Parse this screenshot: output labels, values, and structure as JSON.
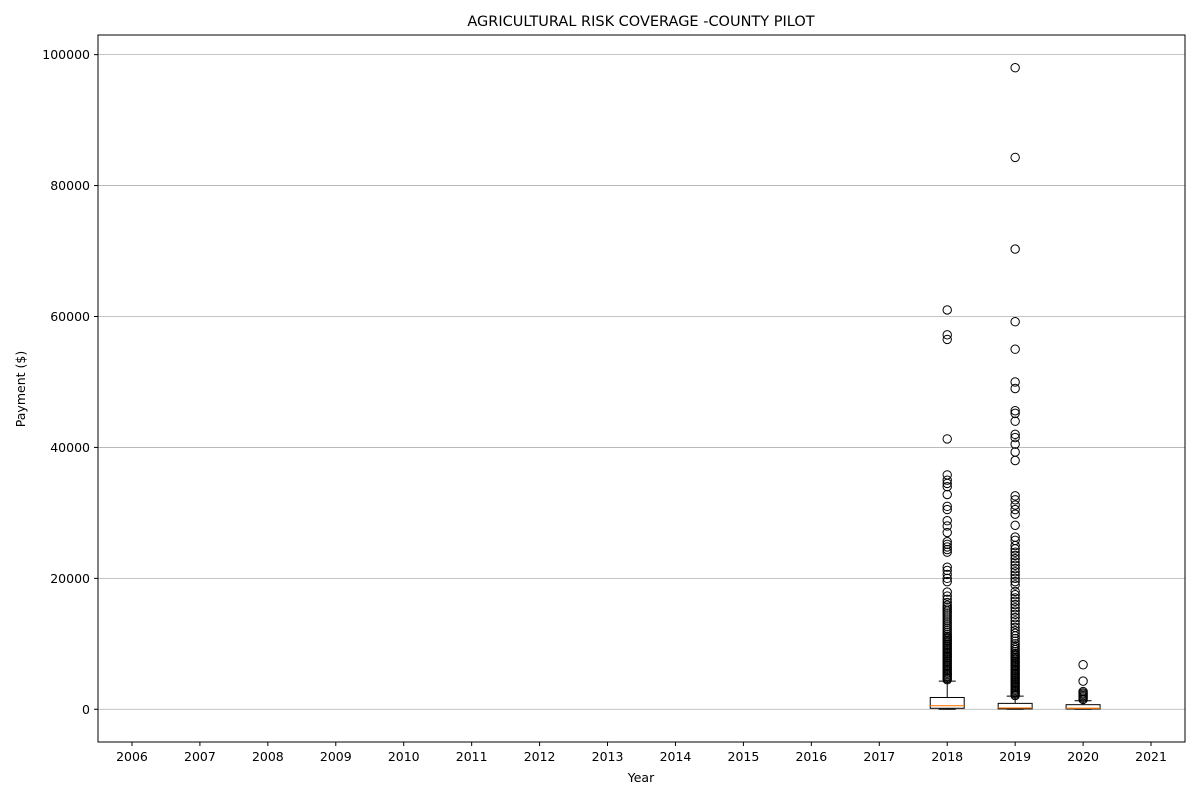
{
  "chart_data": {
    "type": "boxplot",
    "title": "AGRICULTURAL RISK COVERAGE -COUNTY PILOT",
    "xlabel": "Year",
    "ylabel": "Payment ($)",
    "categories": [
      "2006",
      "2007",
      "2008",
      "2009",
      "2010",
      "2011",
      "2012",
      "2013",
      "2014",
      "2015",
      "2016",
      "2017",
      "2018",
      "2019",
      "2020",
      "2021"
    ],
    "ylim": [
      -5000,
      103000
    ],
    "yticks": [
      0,
      20000,
      40000,
      60000,
      80000,
      100000
    ],
    "grid": "y",
    "colors": {
      "box": "#000000",
      "median": "#ff7f0e",
      "grid": "#b0b0b0"
    },
    "boxes": [
      {
        "category": "2018",
        "q1": 150,
        "median": 550,
        "q3": 1800,
        "whisker_low": 0,
        "whisker_high": 4300,
        "outliers": [
          4500,
          4700,
          4900,
          5100,
          5300,
          5500,
          5700,
          5900,
          6100,
          6300,
          6500,
          6700,
          6900,
          7100,
          7300,
          7500,
          7700,
          7900,
          8100,
          8300,
          8500,
          8700,
          8900,
          9100,
          9300,
          9500,
          9700,
          9900,
          10100,
          10300,
          10500,
          10700,
          10900,
          11100,
          11400,
          11700,
          12000,
          12300,
          12600,
          12900,
          13200,
          13500,
          13800,
          14100,
          14400,
          14700,
          15000,
          15300,
          15600,
          15900,
          16300,
          16800,
          17300,
          17900,
          19500,
          20000,
          20600,
          21200,
          21700,
          24000,
          24400,
          24800,
          25200,
          25600,
          27000,
          28000,
          28800,
          30500,
          31000,
          32800,
          34000,
          34500,
          35000,
          35800,
          41300,
          56500,
          57200,
          61000
        ]
      },
      {
        "category": "2019",
        "q1": 50,
        "median": 200,
        "q3": 900,
        "whisker_low": 0,
        "whisker_high": 2000,
        "outliers": [
          2100,
          2300,
          2500,
          2700,
          2900,
          3100,
          3300,
          3500,
          3700,
          3900,
          4100,
          4300,
          4500,
          4700,
          4900,
          5100,
          5300,
          5500,
          5700,
          5900,
          6100,
          6300,
          6500,
          6700,
          6900,
          7100,
          7300,
          7500,
          7700,
          7900,
          8100,
          8300,
          8500,
          8800,
          9100,
          9400,
          9700,
          10000,
          10400,
          10800,
          11200,
          11600,
          12000,
          12500,
          13000,
          13500,
          14000,
          14500,
          15000,
          15500,
          16000,
          16500,
          17000,
          17500,
          18000,
          19000,
          19500,
          20000,
          20500,
          21000,
          21500,
          22000,
          22500,
          23000,
          23500,
          24000,
          24500,
          25000,
          25800,
          26300,
          28100,
          29800,
          30500,
          31200,
          32000,
          32600,
          38000,
          39300,
          40500,
          41500,
          42000,
          44000,
          45200,
          45600,
          49000,
          50000,
          55000,
          59200,
          70300,
          84300,
          98000
        ]
      },
      {
        "category": "2020",
        "q1": 40,
        "median": 150,
        "q3": 700,
        "whisker_low": 0,
        "whisker_high": 1300,
        "outliers": [
          1500,
          1700,
          1900,
          2100,
          2300,
          2500,
          2700,
          4300,
          6800
        ]
      }
    ]
  }
}
